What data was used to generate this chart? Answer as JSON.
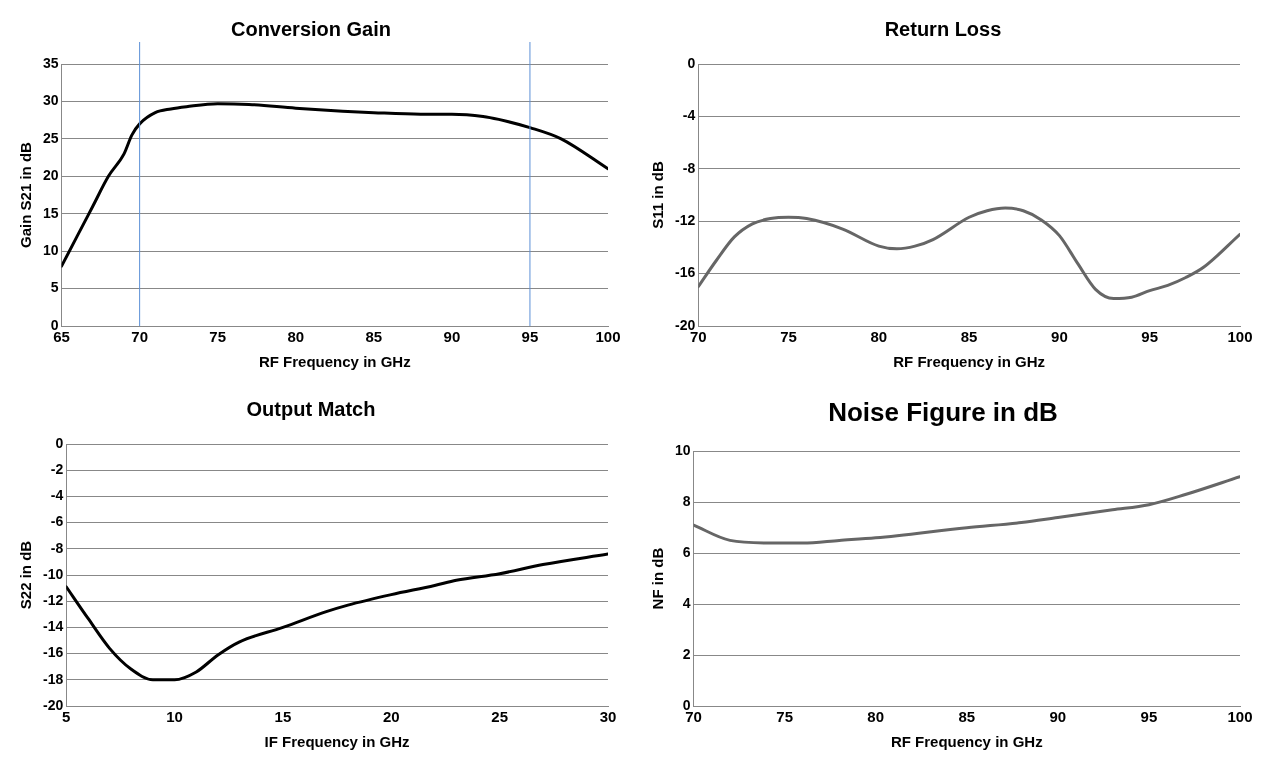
{
  "chart_data": [
    {
      "type": "line",
      "title": "Conversion Gain",
      "xlabel": "RF Frequency in GHz",
      "ylabel": "Gain S21 in dB",
      "xlim": [
        65,
        100
      ],
      "xticks": [
        65,
        70,
        75,
        80,
        85,
        90,
        95,
        100
      ],
      "ylim": [
        0,
        35
      ],
      "yticks": [
        0,
        5,
        10,
        15,
        20,
        25,
        30,
        35
      ],
      "grid": "y",
      "marker": "none",
      "line_style": "solid",
      "legend": false,
      "x": [
        65,
        66,
        67,
        68,
        69,
        69.5,
        70,
        71,
        72,
        73,
        75,
        77,
        80,
        83,
        85,
        88,
        90,
        92,
        93,
        95,
        97,
        100
      ],
      "series": [
        {
          "color": "#000000",
          "values": [
            8,
            12,
            16,
            20,
            23,
            25.5,
            27,
            28.5,
            29,
            29.3,
            29.7,
            29.6,
            29.1,
            28.7,
            28.5,
            28.3,
            28.3,
            28,
            27.6,
            26.5,
            25,
            21
          ]
        }
      ],
      "ref_lines": [
        {
          "axis": "x",
          "value": 70,
          "color": "#5b8fd6"
        },
        {
          "axis": "x",
          "value": 95,
          "color": "#5b8fd6"
        }
      ]
    },
    {
      "type": "line",
      "title": "Return Loss",
      "xlabel": "RF Frequency in GHz",
      "ylabel": "S11 in dB",
      "xlim": [
        70,
        100
      ],
      "xticks": [
        70,
        75,
        80,
        85,
        90,
        95,
        100
      ],
      "ylim": [
        -20,
        0
      ],
      "yticks": [
        -20,
        -16,
        -12,
        -8,
        -4,
        0
      ],
      "grid": "y",
      "marker": "none",
      "line_style": "solid",
      "legend": false,
      "x": [
        70,
        71,
        72,
        73,
        74,
        75,
        76,
        78,
        80,
        81,
        82,
        83,
        85,
        86,
        87,
        88,
        89,
        90,
        91,
        92,
        93,
        94,
        95,
        96,
        97,
        98,
        100
      ],
      "series": [
        {
          "color": "#666666",
          "values": [
            -17,
            -15,
            -13.2,
            -12.2,
            -11.8,
            -11.7,
            -11.8,
            -12.6,
            -13.9,
            -14.1,
            -13.9,
            -13.4,
            -11.7,
            -11.2,
            -11,
            -11.2,
            -11.9,
            -13.1,
            -15.2,
            -17.2,
            -17.9,
            -17.8,
            -17.3,
            -16.9,
            -16.3,
            -15.5,
            -13
          ]
        }
      ]
    },
    {
      "type": "line",
      "title": "Output Match",
      "xlabel": "IF Frequency in GHz",
      "ylabel": "S22 in dB",
      "xlim": [
        5,
        30
      ],
      "xticks": [
        5,
        10,
        15,
        20,
        25,
        30
      ],
      "ylim": [
        -20,
        0
      ],
      "yticks": [
        -20,
        -18,
        -16,
        -14,
        -12,
        -10,
        -8,
        -6,
        -4,
        -2,
        0
      ],
      "grid": "y",
      "marker": "none",
      "line_style": "solid",
      "legend": false,
      "x": [
        5,
        6,
        7,
        8,
        9,
        10,
        11,
        12,
        13,
        15,
        17,
        18,
        20,
        22,
        23,
        25,
        27,
        30
      ],
      "series": [
        {
          "color": "#000000",
          "values": [
            -10.9,
            -13.3,
            -15.6,
            -17.2,
            -18,
            -18,
            -17.4,
            -16.1,
            -15.1,
            -14,
            -12.8,
            -12.3,
            -11.5,
            -10.8,
            -10.4,
            -9.9,
            -9.2,
            -8.4
          ]
        }
      ]
    },
    {
      "type": "line",
      "title": "Noise Figure in dB",
      "xlabel": "RF Frequency in GHz",
      "ylabel": "NF in dB",
      "xlim": [
        70,
        100
      ],
      "xticks": [
        70,
        75,
        80,
        85,
        90,
        95,
        100
      ],
      "ylim": [
        0,
        10
      ],
      "yticks": [
        0,
        2,
        4,
        6,
        8,
        10
      ],
      "grid": "y",
      "marker": "none",
      "line_style": "solid",
      "legend": false,
      "x": [
        70,
        72,
        74,
        76,
        78,
        80,
        85,
        88,
        90,
        93,
        95,
        97,
        100
      ],
      "series": [
        {
          "color": "#666666",
          "values": [
            7.1,
            6.5,
            6.4,
            6.4,
            6.5,
            6.6,
            7,
            7.2,
            7.4,
            7.7,
            7.9,
            8.3,
            9
          ]
        }
      ]
    }
  ]
}
